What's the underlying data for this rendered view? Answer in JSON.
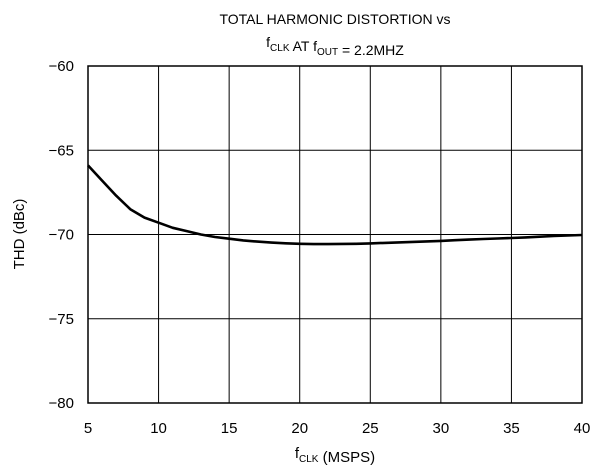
{
  "chart_data": {
    "type": "line",
    "title": {
      "line1": "TOTAL HARMONIC DISTORTION vs",
      "line2_parts": [
        {
          "t": "f",
          "sub": false
        },
        {
          "t": "CLK",
          "sub": true
        },
        {
          "t": " AT f",
          "sub": false
        },
        {
          "t": "OUT",
          "sub": true
        },
        {
          "t": " = 2.2MHZ",
          "sub": false
        }
      ]
    },
    "xlabel_parts": [
      {
        "t": "f",
        "sub": false
      },
      {
        "t": "CLK",
        "sub": true
      },
      {
        "t": " (MSPS)",
        "sub": false
      }
    ],
    "ylabel": "THD (dBc)",
    "xlim": [
      5,
      40
    ],
    "ylim": [
      -80,
      -60
    ],
    "xticks": [
      5,
      10,
      15,
      20,
      25,
      30,
      35,
      40
    ],
    "yticks": [
      -60,
      -65,
      -70,
      -75,
      -80
    ],
    "ytick_labels": [
      "−60",
      "−65",
      "−70",
      "−75",
      "−80"
    ],
    "grid": true,
    "series": [
      {
        "color": "#000000",
        "x": [
          5,
          6,
          7,
          8,
          9,
          10,
          11,
          12,
          13,
          14,
          15,
          16,
          17,
          18,
          19,
          20,
          21,
          22,
          23,
          24,
          25,
          26,
          27,
          28,
          29,
          30,
          31,
          32,
          33,
          34,
          35,
          36,
          37,
          38,
          39,
          40
        ],
        "y": [
          -65.9,
          -66.8,
          -67.7,
          -68.5,
          -69.0,
          -69.3,
          -69.6,
          -69.8,
          -70.0,
          -70.15,
          -70.25,
          -70.35,
          -70.42,
          -70.48,
          -70.52,
          -70.55,
          -70.57,
          -70.57,
          -70.56,
          -70.55,
          -70.53,
          -70.5,
          -70.47,
          -70.44,
          -70.41,
          -70.38,
          -70.34,
          -70.3,
          -70.27,
          -70.24,
          -70.21,
          -70.17,
          -70.13,
          -70.09,
          -70.06,
          -70.03
        ]
      }
    ]
  }
}
